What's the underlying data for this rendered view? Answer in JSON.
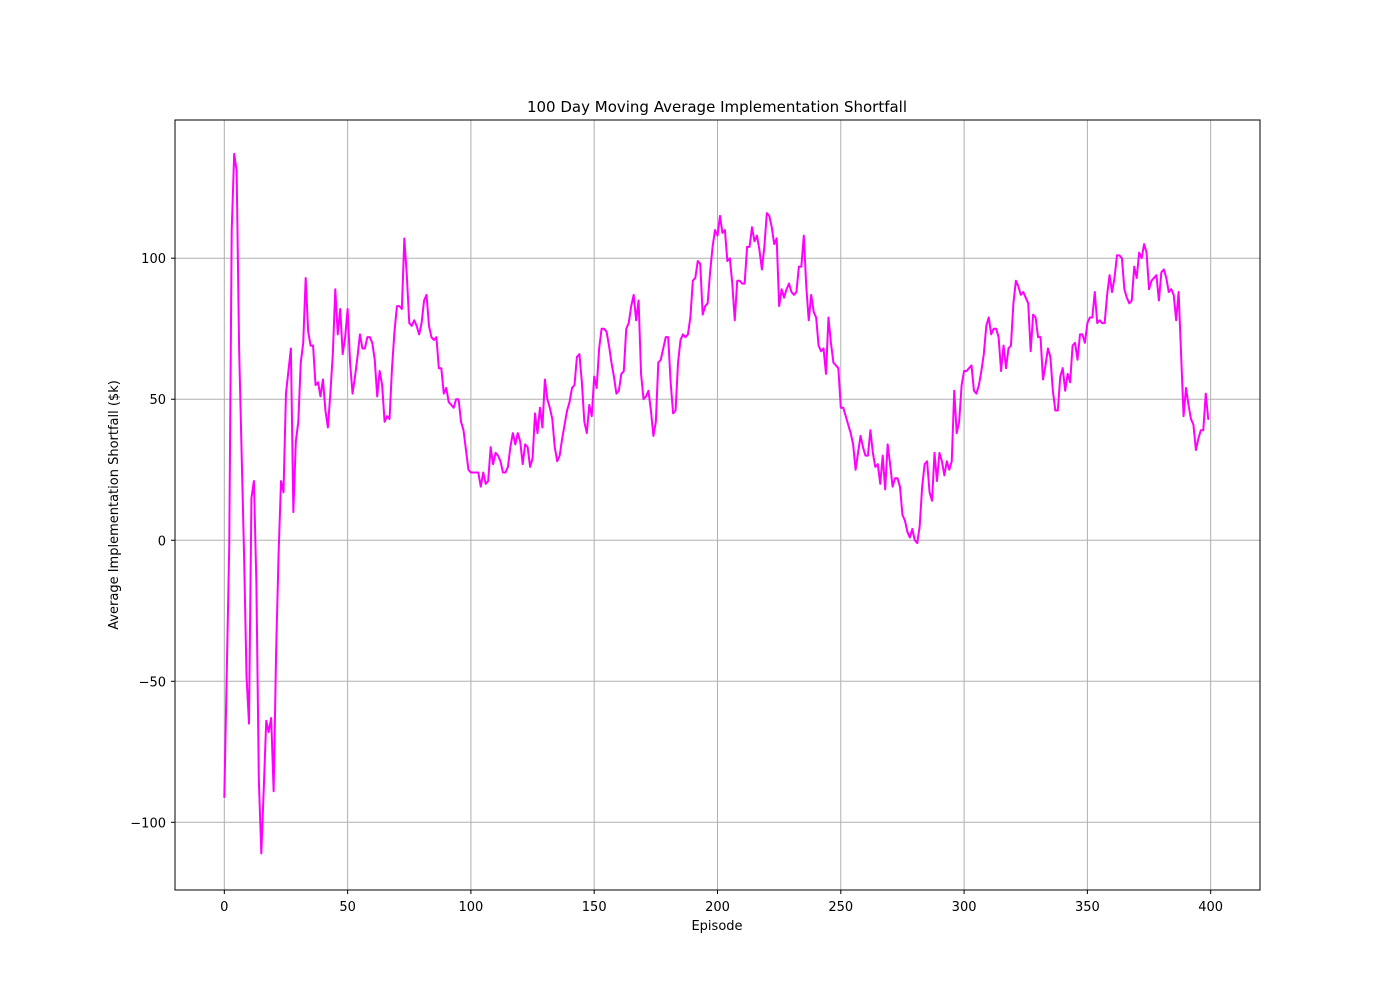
{
  "chart_data": {
    "type": "line",
    "title": "100 Day Moving Average Implementation Shortfall",
    "xlabel": "Episode",
    "ylabel": "Average Implementation Shortfall ($k)",
    "xlim": [
      -20,
      420
    ],
    "ylim": [
      -124,
      149
    ],
    "grid": true,
    "xticks": [
      0,
      50,
      100,
      150,
      200,
      250,
      300,
      350,
      400
    ],
    "xtick_labels": [
      "0",
      "50",
      "100",
      "150",
      "200",
      "250",
      "300",
      "350",
      "400"
    ],
    "yticks": [
      -100,
      -50,
      0,
      50,
      100
    ],
    "ytick_labels": [
      "−100",
      "−50",
      "0",
      "50",
      "100"
    ],
    "series": [
      {
        "color": "#ff00ff",
        "x": [
          0,
          2,
          3,
          4,
          5,
          6,
          8,
          9,
          10,
          11,
          12,
          13,
          14,
          15,
          16,
          17,
          18,
          19,
          20,
          21,
          22,
          23,
          24,
          25,
          26,
          27,
          28,
          29,
          30,
          31,
          32,
          33,
          34,
          35,
          36,
          37,
          38,
          39,
          40,
          41,
          42,
          43,
          44,
          45,
          46,
          47,
          48,
          49,
          50,
          51,
          52,
          53,
          54,
          55,
          56,
          57,
          58,
          59,
          60,
          61,
          62,
          63,
          64,
          65,
          66,
          67,
          68,
          69,
          70,
          71,
          72,
          73,
          74,
          75,
          76,
          77,
          78,
          79,
          80,
          81,
          82,
          83,
          84,
          85,
          86,
          87,
          88,
          89,
          90,
          91,
          92,
          93,
          94,
          95,
          96,
          97,
          98,
          99,
          100,
          101,
          102,
          103,
          104,
          105,
          106,
          107,
          108,
          109,
          110,
          111,
          112,
          113,
          114,
          115,
          116,
          117,
          118,
          119,
          120,
          121,
          122,
          123,
          124,
          125,
          126,
          127,
          128,
          129,
          130,
          131,
          132,
          133,
          134,
          135,
          136,
          137,
          138,
          139,
          140,
          141,
          142,
          143,
          144,
          145,
          146,
          147,
          148,
          149,
          150,
          151,
          152,
          153,
          154,
          155,
          156,
          157,
          158,
          159,
          160,
          161,
          162,
          163,
          164,
          165,
          166,
          167,
          168,
          169,
          170,
          171,
          172,
          173,
          174,
          175,
          176,
          177,
          178,
          179,
          180,
          181,
          182,
          183,
          184,
          185,
          186,
          187,
          188,
          189,
          190,
          191,
          192,
          193,
          194,
          195,
          196,
          197,
          198,
          199,
          200,
          201,
          202,
          203,
          204,
          205,
          206,
          207,
          208,
          209,
          210,
          211,
          212,
          213,
          214,
          215,
          216,
          217,
          218,
          219,
          220,
          221,
          222,
          223,
          224,
          225,
          226,
          227,
          228,
          229,
          230,
          231,
          232,
          233,
          234,
          235,
          236,
          237,
          238,
          239,
          240,
          241,
          242,
          243,
          244,
          245,
          246,
          247,
          248,
          249,
          250,
          251,
          252,
          253,
          254,
          255,
          256,
          257,
          258,
          259,
          260,
          261,
          262,
          263,
          264,
          265,
          266,
          267,
          268,
          269,
          270,
          271,
          272,
          273,
          274,
          275,
          276,
          277,
          278,
          279,
          280,
          281,
          282,
          283,
          284,
          285,
          286,
          287,
          288,
          289,
          290,
          291,
          292,
          293,
          294,
          295,
          296,
          297,
          298,
          299,
          300,
          301,
          302,
          303,
          304,
          305,
          306,
          307,
          308,
          309,
          310,
          311,
          312,
          313,
          314,
          315,
          316,
          317,
          318,
          319,
          320,
          321,
          322,
          323,
          324,
          325,
          326,
          327,
          328,
          329,
          330,
          331,
          332,
          333,
          334,
          335,
          336,
          337,
          338,
          339,
          340,
          341,
          342,
          343,
          344,
          345,
          346,
          347,
          348,
          349,
          350,
          351,
          352,
          353,
          354,
          355,
          356,
          357,
          358,
          359,
          360,
          361,
          362,
          363,
          364,
          365,
          366,
          367,
          368,
          369,
          370,
          371,
          372,
          373,
          374,
          375,
          376,
          377,
          378,
          379,
          380,
          381,
          382,
          383,
          384,
          385,
          386,
          387,
          388,
          389,
          390,
          391,
          392,
          393,
          394,
          395,
          396,
          397,
          398,
          399
        ],
        "y": [
          -91,
          -2,
          110,
          137,
          131,
          68,
          -5,
          -48,
          -65,
          15,
          21,
          -15,
          -85,
          -111,
          -88,
          -64,
          -68,
          -63,
          -89,
          -40,
          -5,
          21,
          17,
          52,
          60,
          68,
          10,
          35,
          42,
          63,
          70,
          93,
          74,
          69,
          69,
          55,
          56,
          51,
          57,
          46,
          40,
          52,
          66,
          89,
          73,
          82,
          66,
          72,
          82,
          63,
          52,
          58,
          65,
          73,
          68,
          68,
          72,
          72,
          70,
          64,
          51,
          60,
          55,
          42,
          44,
          43,
          61,
          74,
          83,
          83,
          82,
          107,
          94,
          77,
          76,
          78,
          76,
          73,
          77,
          85,
          87,
          76,
          72,
          71,
          72,
          61,
          61,
          52,
          54,
          49,
          48,
          47,
          50,
          50,
          42,
          39,
          32,
          25,
          24,
          24,
          24,
          24,
          19,
          24,
          20,
          21,
          33,
          27,
          31,
          30,
          28,
          24,
          24,
          26,
          33,
          38,
          34,
          38,
          35,
          27,
          34,
          33,
          26,
          29,
          45,
          38,
          47,
          40,
          57,
          50,
          47,
          43,
          33,
          28,
          30,
          36,
          41,
          46,
          49,
          54,
          55,
          65,
          66,
          56,
          42,
          38,
          48,
          44,
          58,
          54,
          68,
          75,
          75,
          74,
          69,
          63,
          58,
          52,
          53,
          59,
          60,
          75,
          77,
          83,
          87,
          78,
          85,
          59,
          50,
          51,
          53,
          46,
          37,
          42,
          63,
          64,
          68,
          72,
          72,
          56,
          45,
          46,
          63,
          71,
          73,
          72,
          73,
          79,
          92,
          93,
          99,
          98,
          80,
          83,
          84,
          95,
          104,
          110,
          108,
          115,
          109,
          110,
          99,
          100,
          91,
          78,
          92,
          92,
          91,
          91,
          104,
          104,
          111,
          106,
          108,
          103,
          96,
          104,
          116,
          115,
          111,
          105,
          107,
          83,
          89,
          86,
          89,
          91,
          88,
          87,
          88,
          97,
          97,
          108,
          90,
          78,
          87,
          81,
          79,
          69,
          67,
          68,
          59,
          79,
          70,
          63,
          62,
          61,
          47,
          47,
          44,
          41,
          38,
          34,
          25,
          31,
          37,
          33,
          30,
          30,
          39,
          31,
          26,
          27,
          20,
          30,
          18,
          34,
          27,
          19,
          22,
          22,
          19,
          9,
          7,
          3,
          1,
          4,
          0,
          -1,
          5,
          19,
          27,
          28,
          17,
          14,
          31,
          21,
          31,
          28,
          23,
          28,
          25,
          28,
          53,
          38,
          42,
          55,
          60,
          60,
          61,
          62,
          53,
          52,
          55,
          60,
          66,
          76,
          79,
          73,
          75,
          75,
          72,
          60,
          69,
          61,
          68,
          69,
          84,
          92,
          90,
          87,
          88,
          86,
          84,
          67,
          80,
          79,
          72,
          72,
          57,
          62,
          68,
          65,
          53,
          46,
          46,
          58,
          61,
          53,
          59,
          56,
          69,
          70,
          64,
          73,
          73,
          70,
          77,
          79,
          79,
          88,
          77,
          78,
          77,
          77,
          87,
          94,
          88,
          93,
          101,
          101,
          100,
          89,
          86,
          84,
          85,
          97,
          93,
          102,
          100,
          105,
          102,
          89,
          92,
          93,
          94,
          85,
          95,
          96,
          93,
          88,
          89,
          87,
          78,
          88,
          66,
          44,
          54,
          48,
          43,
          41,
          32,
          36,
          39,
          39,
          52,
          43
        ]
      }
    ]
  }
}
